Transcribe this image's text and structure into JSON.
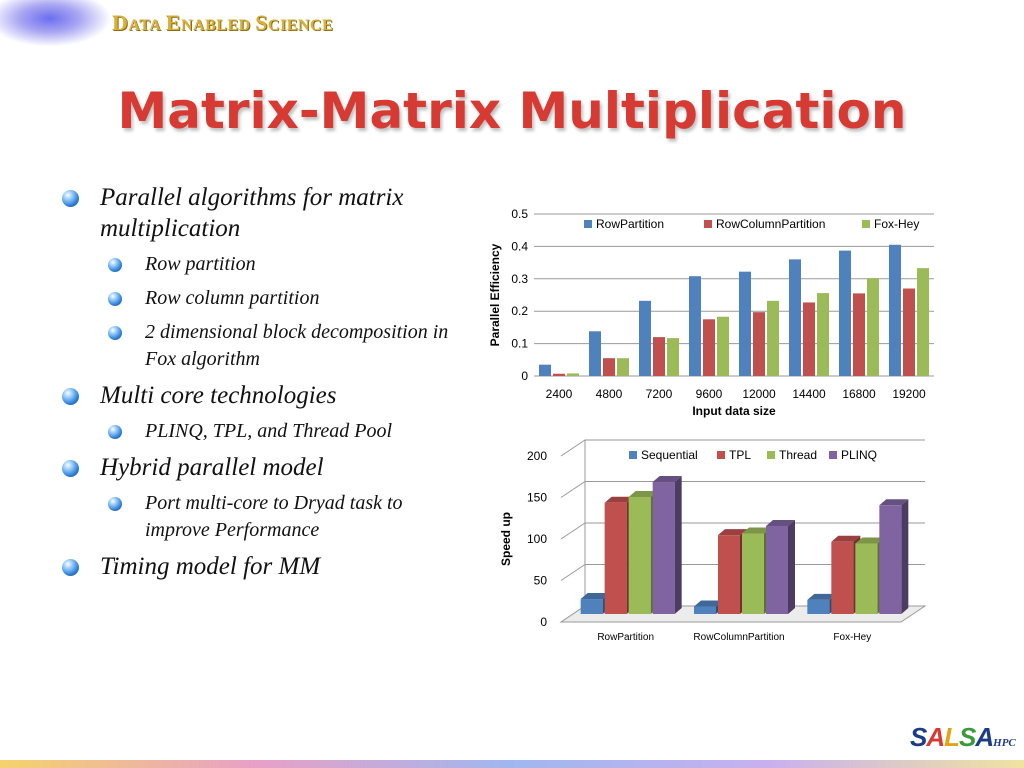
{
  "header": {
    "brand": [
      "Data",
      "Enabled",
      "Science"
    ]
  },
  "slide": {
    "title": "Matrix-Matrix Multiplication"
  },
  "bullets": [
    {
      "level": 1,
      "text": "Parallel algorithms for matrix multiplication"
    },
    {
      "level": 2,
      "text": "Row partition"
    },
    {
      "level": 2,
      "text": "Row column partition"
    },
    {
      "level": 2,
      "text": "2 dimensional block decomposition in Fox algorithm"
    },
    {
      "level": 1,
      "text": "Multi core technologies"
    },
    {
      "level": 2,
      "text": "PLINQ, TPL, and Thread Pool"
    },
    {
      "level": 1,
      "text": "Hybrid parallel model"
    },
    {
      "level": 2,
      "text": "Port multi-core to Dryad task to improve Performance"
    },
    {
      "level": 1,
      "text": "Timing model for MM"
    }
  ],
  "chart_data": [
    {
      "type": "bar",
      "categories": [
        "2400",
        "4800",
        "7200",
        "9600",
        "12000",
        "14400",
        "16800",
        "19200"
      ],
      "series": [
        {
          "name": "RowPartition",
          "color": "#4f81bd",
          "values": [
            0.035,
            0.138,
            0.232,
            0.308,
            0.322,
            0.36,
            0.387,
            0.405
          ]
        },
        {
          "name": "RowColumnPartition",
          "color": "#c0504d",
          "values": [
            0.007,
            0.055,
            0.12,
            0.175,
            0.197,
            0.227,
            0.255,
            0.27
          ]
        },
        {
          "name": "Fox-Hey",
          "color": "#9bbb59",
          "values": [
            0.008,
            0.055,
            0.117,
            0.183,
            0.232,
            0.256,
            0.302,
            0.333
          ]
        }
      ],
      "xlabel": "Input data size",
      "ylabel": "Parallel Efficiency",
      "ylim": [
        0,
        0.5
      ],
      "yticks": [
        "0",
        "0.1",
        "0.2",
        "0.3",
        "0.4",
        "0.5"
      ],
      "grid": true,
      "legend": "top"
    },
    {
      "type": "bar",
      "style": "3d",
      "categories": [
        "RowPartition",
        "RowColumnPartition",
        "Fox-Hey"
      ],
      "series": [
        {
          "name": "Sequential",
          "color": "#4f81bd",
          "values": [
            18,
            9,
            17
          ]
        },
        {
          "name": "TPL",
          "color": "#c0504d",
          "values": [
            134,
            95,
            87
          ]
        },
        {
          "name": "Thread",
          "color": "#9bbb59",
          "values": [
            141,
            97,
            85
          ]
        },
        {
          "name": "PLINQ",
          "color": "#8064a2",
          "values": [
            159,
            106,
            131
          ]
        }
      ],
      "xlabel": "",
      "ylabel": "Speed up",
      "ylim": [
        0,
        200
      ],
      "yticks": [
        "0",
        "50",
        "100",
        "150",
        "200"
      ],
      "grid": true,
      "legend": "top"
    }
  ],
  "footer": {
    "logo": "SALSA",
    "logo_suffix": "HPC"
  }
}
